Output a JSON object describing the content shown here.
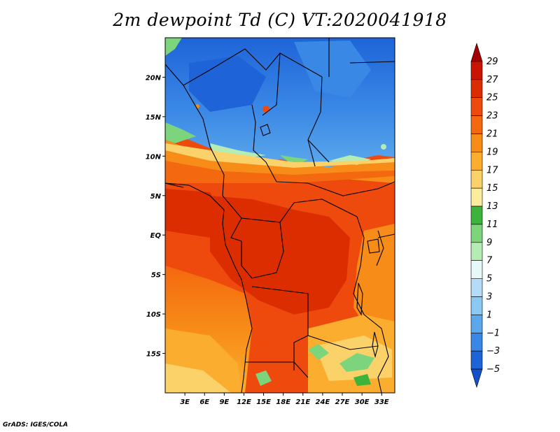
{
  "title": "2m dewpoint Td (C) VT:2020041918",
  "credit": "GrADS: IGES/COLA",
  "map": {
    "lon_range": [
      0,
      35
    ],
    "lat_range": [
      -20,
      25
    ],
    "lat_ticks": [
      {
        "value": 20,
        "label": "20N"
      },
      {
        "value": 15,
        "label": "15N"
      },
      {
        "value": 10,
        "label": "10N"
      },
      {
        "value": 5,
        "label": "5N"
      },
      {
        "value": 0,
        "label": "EQ"
      },
      {
        "value": -5,
        "label": "5S"
      },
      {
        "value": -10,
        "label": "10S"
      },
      {
        "value": -15,
        "label": "15S"
      }
    ],
    "lon_ticks": [
      {
        "value": 3,
        "label": "3E"
      },
      {
        "value": 6,
        "label": "6E"
      },
      {
        "value": 9,
        "label": "9E"
      },
      {
        "value": 12,
        "label": "12E"
      },
      {
        "value": 15,
        "label": "15E"
      },
      {
        "value": 18,
        "label": "18E"
      },
      {
        "value": 21,
        "label": "21E"
      },
      {
        "value": 24,
        "label": "24E"
      },
      {
        "value": 27,
        "label": "27E"
      },
      {
        "value": 30,
        "label": "30E"
      },
      {
        "value": 33,
        "label": "33E"
      }
    ]
  },
  "colorbar": {
    "labels": [
      "29",
      "27",
      "25",
      "23",
      "21",
      "19",
      "17",
      "15",
      "13",
      "11",
      "9",
      "7",
      "5",
      "3",
      "1",
      "−1",
      "−3",
      "−5"
    ],
    "colors": [
      "#a50000",
      "#c81400",
      "#dc2d00",
      "#ef4a0e",
      "#f4680f",
      "#f78c18",
      "#fbad2f",
      "#fbd26a",
      "#fbec9e",
      "#3cb43c",
      "#7cd47c",
      "#b4ecb4",
      "#e6f8f8",
      "#b4dcf8",
      "#8cc8f4",
      "#5ca8ec",
      "#3a88e6",
      "#1e64d8",
      "#1450c8"
    ]
  }
}
